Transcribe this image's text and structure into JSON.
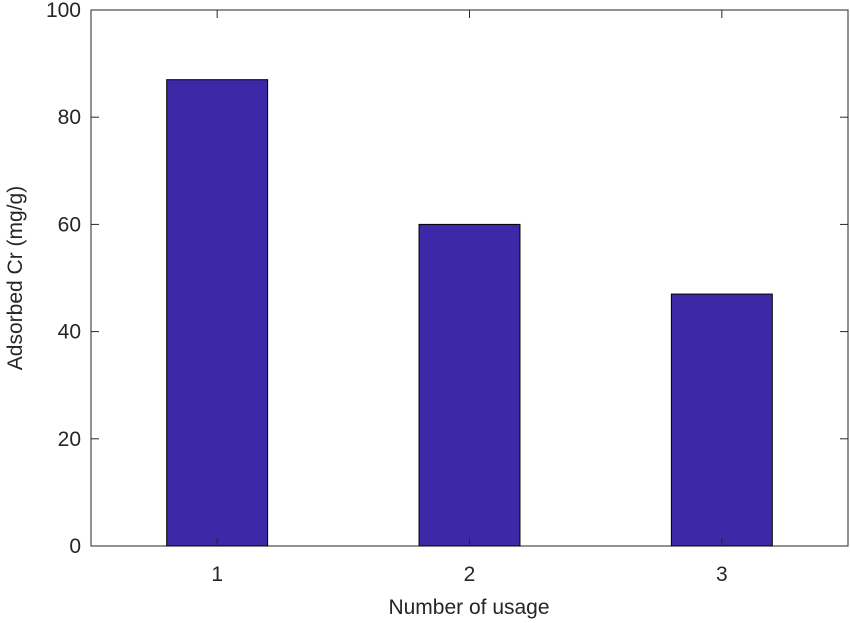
{
  "chart_data": {
    "type": "bar",
    "x_label": "Number of usage",
    "y_label": "Adsorbed Cr (mg/g)",
    "categories": [
      "1",
      "2",
      "3"
    ],
    "values": [
      87,
      60,
      47
    ],
    "color": "#3d28a8",
    "ylim": [
      0,
      100
    ],
    "yticks": [
      0,
      20,
      40,
      60,
      80,
      100
    ],
    "grid": false
  }
}
